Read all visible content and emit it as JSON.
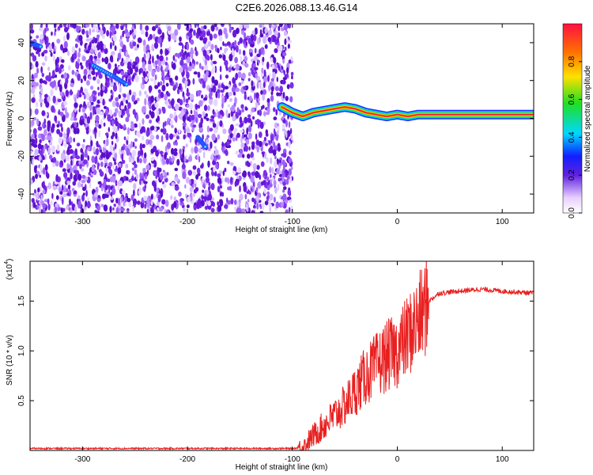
{
  "page": {
    "title": "C2E6.2026.088.13.46.G14"
  },
  "chart_data": [
    {
      "type": "heatmap",
      "title": "",
      "xlabel": "Height of straight line (km)",
      "ylabel": "Frequency (Hz)",
      "xlim": [
        -350,
        130
      ],
      "ylim": [
        -50,
        50
      ],
      "xticks": [
        -300,
        -200,
        -100,
        0,
        100
      ],
      "yticks": [
        -40,
        -20,
        0,
        20,
        40
      ],
      "xtick_labels": [
        "-300",
        "-200",
        "-100",
        "0",
        "100"
      ],
      "ytick_labels": [
        "-40",
        "-20",
        "0",
        "20",
        "40"
      ],
      "colorbar": {
        "label": "Normalized spectral amplitude",
        "range": [
          0,
          1
        ],
        "ticks": [
          0.0,
          0.2,
          0.4,
          0.6,
          0.8
        ],
        "tick_labels": [
          "0.0",
          "0.2",
          "0.4",
          "0.6",
          "0.8"
        ]
      },
      "noise_region_x": [
        -350,
        -100
      ],
      "signal_track": {
        "x": [
          -110,
          -100,
          -90,
          -80,
          -70,
          -60,
          -50,
          -40,
          -30,
          -20,
          -10,
          0,
          10,
          20,
          40,
          60,
          80,
          100,
          130
        ],
        "frequency": [
          6,
          3,
          1,
          3,
          4,
          5,
          6,
          5,
          3,
          2,
          1,
          2,
          1,
          2,
          2,
          2,
          2,
          2,
          2
        ]
      },
      "early_features": [
        {
          "x": [
            -290,
            -270,
            -258
          ],
          "frequency": [
            28,
            22,
            18
          ]
        },
        {
          "x": [
            -350,
            -340
          ],
          "frequency": [
            40,
            38
          ]
        },
        {
          "x": [
            -190,
            -183
          ],
          "frequency": [
            -10,
            -15
          ]
        }
      ]
    },
    {
      "type": "line",
      "title": "",
      "xlabel": "Height of straight line (km)",
      "ylabel": "SNR (10 * v/v)",
      "y_multiplier_label": "(x10",
      "y_multiplier_exp": "4",
      "xlim": [
        -350,
        130
      ],
      "ylim": [
        0,
        1.9
      ],
      "xticks": [
        -300,
        -200,
        -100,
        0,
        100
      ],
      "yticks": [
        0.5,
        1.0,
        1.5
      ],
      "xtick_labels": [
        "-300",
        "-200",
        "-100",
        "0",
        "100"
      ],
      "ytick_labels": [
        "0.5",
        "1.0",
        "1.5"
      ],
      "color": "#e82020",
      "series": [
        {
          "name": "SNR",
          "x": [
            -350,
            -300,
            -250,
            -200,
            -150,
            -100,
            -90,
            -80,
            -70,
            -60,
            -50,
            -40,
            -30,
            -20,
            -10,
            0,
            10,
            20,
            30,
            40,
            60,
            80,
            100,
            130
          ],
          "values": [
            0.02,
            0.02,
            0.02,
            0.02,
            0.02,
            0.02,
            0.03,
            0.15,
            0.25,
            0.35,
            0.45,
            0.6,
            0.75,
            0.85,
            0.95,
            1.0,
            1.15,
            1.3,
            1.5,
            1.58,
            1.6,
            1.62,
            1.6,
            1.58
          ]
        }
      ]
    }
  ]
}
